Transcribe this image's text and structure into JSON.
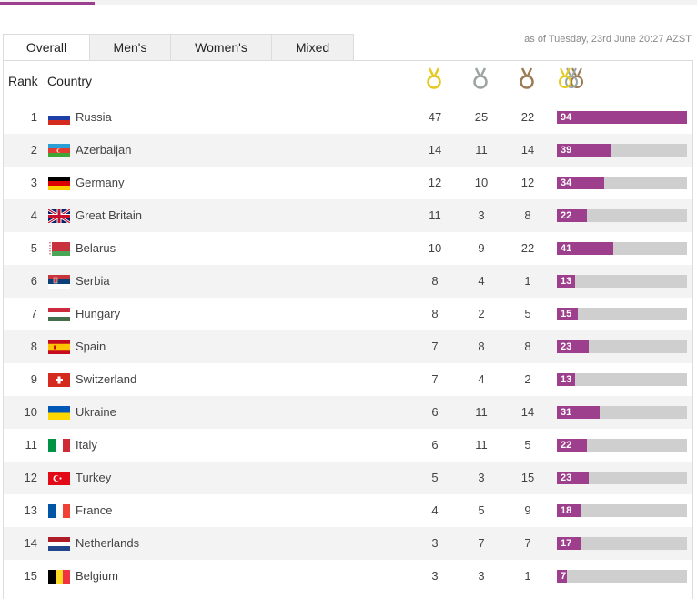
{
  "tabs": [
    {
      "label": "Overall",
      "active": true
    },
    {
      "label": "Men's",
      "active": false
    },
    {
      "label": "Women's",
      "active": false
    },
    {
      "label": "Mixed",
      "active": false
    }
  ],
  "as_of": "as of Tuesday, 23rd June 20:27 AZST",
  "headers": {
    "rank": "Rank",
    "country": "Country",
    "gold_icon": "gold-medal-icon",
    "silver_icon": "silver-medal-icon",
    "bronze_icon": "bronze-medal-icon",
    "total_icon": "total-medals-icon"
  },
  "colors": {
    "accent": "#9e3f8e",
    "gold": "#e6c91e",
    "silver": "#9aa5a3",
    "bronze": "#9b7b55",
    "bar_track": "#cfcfcf"
  },
  "max_total": 94,
  "rows": [
    {
      "rank": "1",
      "country": "Russia",
      "flag": "russia-flag-icon",
      "gold": "47",
      "silver": "25",
      "bronze": "22",
      "total": "94"
    },
    {
      "rank": "2",
      "country": "Azerbaijan",
      "flag": "azerbaijan-flag-icon",
      "gold": "14",
      "silver": "11",
      "bronze": "14",
      "total": "39"
    },
    {
      "rank": "3",
      "country": "Germany",
      "flag": "germany-flag-icon",
      "gold": "12",
      "silver": "10",
      "bronze": "12",
      "total": "34"
    },
    {
      "rank": "4",
      "country": "Great Britain",
      "flag": "great-britain-flag-icon",
      "gold": "11",
      "silver": "3",
      "bronze": "8",
      "total": "22"
    },
    {
      "rank": "5",
      "country": "Belarus",
      "flag": "belarus-flag-icon",
      "gold": "10",
      "silver": "9",
      "bronze": "22",
      "total": "41"
    },
    {
      "rank": "6",
      "country": "Serbia",
      "flag": "serbia-flag-icon",
      "gold": "8",
      "silver": "4",
      "bronze": "1",
      "total": "13"
    },
    {
      "rank": "7",
      "country": "Hungary",
      "flag": "hungary-flag-icon",
      "gold": "8",
      "silver": "2",
      "bronze": "5",
      "total": "15"
    },
    {
      "rank": "8",
      "country": "Spain",
      "flag": "spain-flag-icon",
      "gold": "7",
      "silver": "8",
      "bronze": "8",
      "total": "23"
    },
    {
      "rank": "9",
      "country": "Switzerland",
      "flag": "switzerland-flag-icon",
      "gold": "7",
      "silver": "4",
      "bronze": "2",
      "total": "13"
    },
    {
      "rank": "10",
      "country": "Ukraine",
      "flag": "ukraine-flag-icon",
      "gold": "6",
      "silver": "11",
      "bronze": "14",
      "total": "31"
    },
    {
      "rank": "11",
      "country": "Italy",
      "flag": "italy-flag-icon",
      "gold": "6",
      "silver": "11",
      "bronze": "5",
      "total": "22"
    },
    {
      "rank": "12",
      "country": "Turkey",
      "flag": "turkey-flag-icon",
      "gold": "5",
      "silver": "3",
      "bronze": "15",
      "total": "23"
    },
    {
      "rank": "13",
      "country": "France",
      "flag": "france-flag-icon",
      "gold": "4",
      "silver": "5",
      "bronze": "9",
      "total": "18"
    },
    {
      "rank": "14",
      "country": "Netherlands",
      "flag": "netherlands-flag-icon",
      "gold": "3",
      "silver": "7",
      "bronze": "7",
      "total": "17"
    },
    {
      "rank": "15",
      "country": "Belgium",
      "flag": "belgium-flag-icon",
      "gold": "3",
      "silver": "3",
      "bronze": "1",
      "total": "7"
    }
  ]
}
